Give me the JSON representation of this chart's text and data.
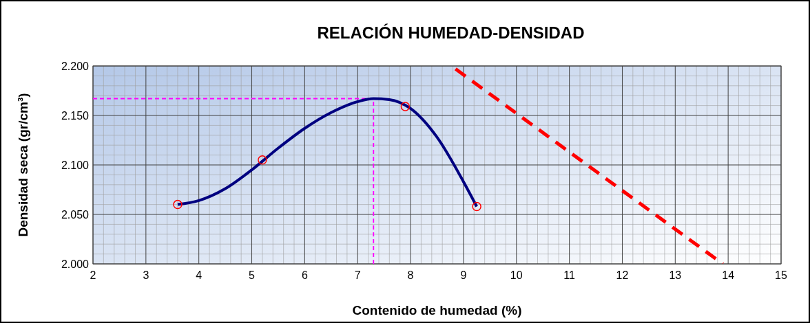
{
  "chart_data": {
    "type": "line",
    "title": "RELACIÓN HUMEDAD-DENSIDAD",
    "xlabel": "Contenido de humedad (%)",
    "ylabel": "Densidad seca (gr/cm³)",
    "xlim": [
      2,
      15
    ],
    "xticks": [
      2,
      3,
      4,
      5,
      6,
      7,
      8,
      9,
      10,
      11,
      12,
      13,
      14,
      15
    ],
    "ylim": [
      2.0,
      2.2
    ],
    "yticks": [
      {
        "value": 2.0,
        "label": "2.000"
      },
      {
        "value": 2.05,
        "label": "2.050"
      },
      {
        "value": 2.1,
        "label": "2.100"
      },
      {
        "value": 2.15,
        "label": "2.150"
      },
      {
        "value": 2.2,
        "label": "2.200"
      }
    ],
    "grid": true,
    "series": [
      {
        "type": "line",
        "color": "#000080",
        "line_style": "solid",
        "marker": "none",
        "x": [
          3.6,
          4.0,
          4.5,
          5.0,
          5.5,
          6.0,
          6.5,
          7.0,
          7.3,
          7.6,
          8.0,
          8.5,
          9.0,
          9.25
        ],
        "values": [
          2.06,
          2.064,
          2.076,
          2.095,
          2.117,
          2.137,
          2.153,
          2.164,
          2.167,
          2.166,
          2.157,
          2.128,
          2.083,
          2.058
        ]
      },
      {
        "type": "scatter",
        "color": "#ff0000",
        "marker": "circle",
        "x": [
          3.6,
          5.2,
          7.9,
          9.25
        ],
        "values": [
          2.06,
          2.105,
          2.159,
          2.058
        ]
      },
      {
        "type": "line",
        "color": "#ff0000",
        "line_style": "dashed",
        "marker": "none",
        "x": [
          8.85,
          13.9
        ],
        "values": [
          2.197,
          2.0
        ]
      }
    ],
    "ref_lines": [
      {
        "axis": "x",
        "value": 7.3,
        "color": "#ff00ff",
        "line_style": "dashed"
      },
      {
        "axis": "y",
        "value": 2.167,
        "color": "#ff00ff",
        "line_style": "dashed"
      }
    ]
  }
}
